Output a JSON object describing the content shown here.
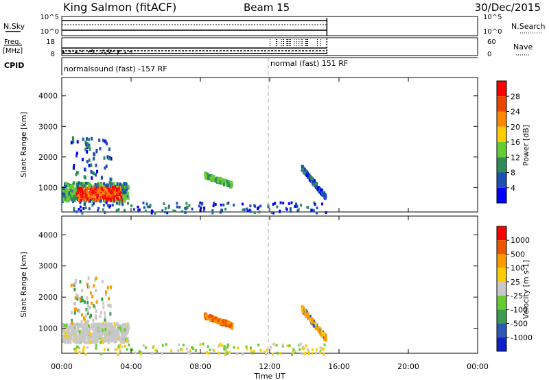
{
  "header": {
    "station": "King Salmon (fitACF)",
    "beam": "Beam 15",
    "date": "30/Dec/2015"
  },
  "top_panels": {
    "nsky_label": "N.Sky",
    "nsky_ticks": [
      "10^5",
      "10^0"
    ],
    "nsearch_label": "N.Search",
    "nsearch_ticks": [
      "10^5",
      "10^0"
    ],
    "freq_label": "Freq.",
    "freq_unit": "[MHz]",
    "freq_ticks": [
      "18",
      "8"
    ],
    "nave_label": "Nave",
    "nave_ticks": [
      "60",
      "0"
    ],
    "cpid_label": "CPID",
    "cpid_segments": [
      {
        "label": "normalsound (fast) -157 RF",
        "start_hour": 0,
        "end_hour": 12
      },
      {
        "label": "normal (fast) 151 RF",
        "start_hour": 12,
        "end_hour": 15.3
      }
    ]
  },
  "chart_data": [
    {
      "type": "heatmap",
      "panel": "power",
      "ylabel": "Slant Range [km]",
      "xlabel": "",
      "y_ticks": [
        "1000",
        "2000",
        "3000",
        "4000"
      ],
      "ylim": [
        200,
        4600
      ],
      "xlim": [
        0,
        24
      ],
      "colorbar_label": "Power [dB]",
      "colorbar_ticks": [
        "4",
        "8",
        "12",
        "16",
        "20",
        "24",
        "28"
      ],
      "colorbar_colors": [
        "#0000ff",
        "#1e4fb4",
        "#2e8c5a",
        "#66cc33",
        "#ffcc00",
        "#ff8800",
        "#ee4400",
        "#ff0000"
      ],
      "data_coverage_hours": [
        0,
        15.3
      ],
      "regions": [
        {
          "name": "main",
          "t": [
            0.0,
            3.8
          ],
          "r": [
            600,
            1200
          ],
          "level": "high"
        },
        {
          "name": "upper",
          "t": [
            0.5,
            2.8
          ],
          "r": [
            1200,
            2700
          ],
          "level": "low"
        },
        {
          "name": "mid",
          "t": [
            8.2,
            9.8
          ],
          "r": [
            1100,
            1500
          ],
          "level": "mid"
        },
        {
          "name": "tail",
          "t": [
            13.8,
            15.2
          ],
          "r": [
            700,
            1700
          ],
          "level": "low"
        },
        {
          "name": "ground",
          "t": [
            0.5,
            15.2
          ],
          "r": [
            200,
            550
          ],
          "level": "low"
        }
      ]
    },
    {
      "type": "heatmap",
      "panel": "velocity",
      "ylabel": "Slant Range [km]",
      "xlabel": "Time UT",
      "x_ticks": [
        "00:00",
        "04:00",
        "08:00",
        "12:00",
        "16:00",
        "20:00",
        "00:00"
      ],
      "y_ticks": [
        "1000",
        "2000",
        "3000",
        "4000"
      ],
      "ylim": [
        200,
        4600
      ],
      "xlim": [
        0,
        24
      ],
      "colorbar_label": "Velocity [m s-1]",
      "colorbar_ticks": [
        "1000",
        "500",
        "100",
        "25",
        "-25",
        "-100",
        "-500",
        "-1000"
      ],
      "colorbar_colors": [
        "#1020c8",
        "#2e5ab4",
        "#3c9c50",
        "#66cc33",
        "#c8c8c8",
        "#ffcc00",
        "#ff9900",
        "#ee5500",
        "#ff0000"
      ],
      "data_coverage_hours": [
        0,
        15.3
      ],
      "regions": [
        {
          "name": "main",
          "t": [
            0.0,
            3.8
          ],
          "r": [
            600,
            1200
          ],
          "level": "low"
        },
        {
          "name": "upper",
          "t": [
            0.5,
            2.8
          ],
          "r": [
            1200,
            2700
          ],
          "level": "low"
        },
        {
          "name": "mid",
          "t": [
            8.2,
            9.8
          ],
          "r": [
            1100,
            1500
          ],
          "level": "high"
        },
        {
          "name": "tail",
          "t": [
            13.8,
            15.2
          ],
          "r": [
            700,
            1700
          ],
          "level": "mid"
        },
        {
          "name": "ground",
          "t": [
            0.5,
            15.2
          ],
          "r": [
            200,
            550
          ],
          "level": "low"
        }
      ]
    }
  ]
}
